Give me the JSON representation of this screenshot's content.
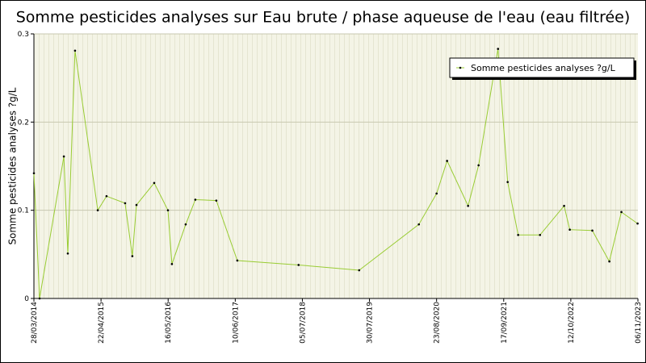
{
  "chart_data": {
    "type": "line",
    "title": "Somme pesticides analyses sur Eau brute / phase aqueuse de l'eau (eau filtrée)",
    "y_label": "Somme pesticides analyses ?g/L",
    "x": [
      "28/03/2014",
      "30/04/2014",
      "18/09/2014",
      "11/10/2014",
      "22/11/2014",
      "03/04/2015",
      "24/05/2015",
      "09/09/2015",
      "21/10/2015",
      "14/11/2015",
      "25/02/2016",
      "15/05/2016",
      "07/06/2016",
      "26/08/2016",
      "21/10/2016",
      "20/02/2017",
      "22/06/2017",
      "13/06/2018",
      "31/05/2019",
      "12/05/2020",
      "23/08/2020",
      "23/10/2020",
      "22/02/2021",
      "24/04/2021",
      "15/08/2021",
      "10/10/2021",
      "10/12/2021",
      "16/04/2022",
      "03/09/2022",
      "06/10/2022",
      "14/02/2023",
      "24/05/2023",
      "02/08/2023",
      "04/11/2023"
    ],
    "series": [
      {
        "name": "Somme pesticides analyses ?g/L",
        "color": "#99cc33",
        "marker_color": "#000000",
        "values": [
          0.142,
          0,
          0.161,
          0.051,
          0.281,
          0.1,
          0.116,
          0.108,
          0.048,
          0.106,
          0.131,
          0.1,
          0.039,
          0.084,
          0.112,
          0.111,
          0.043,
          0.038,
          0.032,
          0.084,
          0.119,
          0.156,
          0.105,
          0.151,
          0.283,
          0.132,
          0.072,
          0.072,
          0.105,
          0.078,
          0.077,
          0.042,
          0.098,
          0.085
        ]
      }
    ],
    "xlim": [
      "28/03/2014",
      "06/11/2023"
    ],
    "xticks": [
      "28/03/2014",
      "22/04/2015",
      "16/05/2016",
      "10/06/2017",
      "05/07/2018",
      "30/07/2019",
      "23/08/2020",
      "17/09/2021",
      "12/10/2022",
      "06/11/2023"
    ],
    "ylim": [
      0,
      0.3
    ],
    "yticks": [
      0,
      0.1,
      0.2,
      0.3
    ],
    "grid": true,
    "legend": "top-right"
  }
}
